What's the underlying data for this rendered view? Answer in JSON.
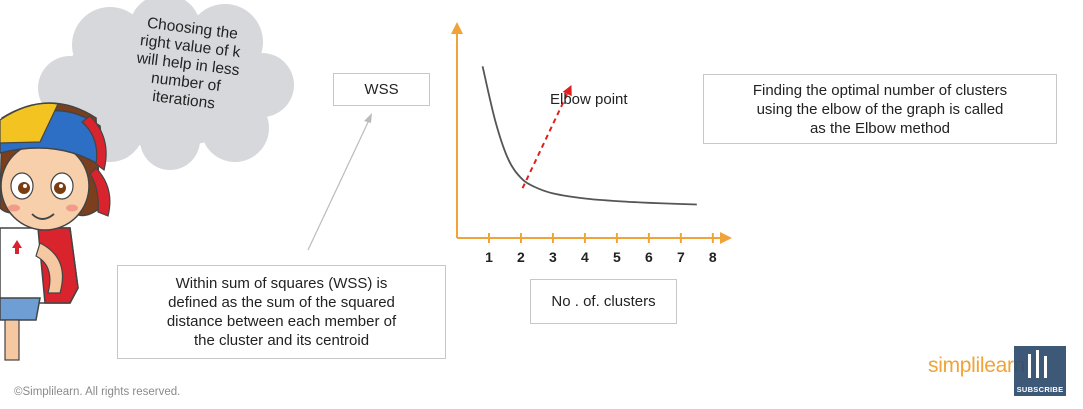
{
  "cloud": {
    "text_lines": [
      "Choosing the",
      "right value of k",
      "will help in less",
      "number of",
      "iterations"
    ]
  },
  "wss_label": "WSS",
  "wss_definition_lines": [
    "Within sum of squares (WSS) is",
    "defined as the sum of the squared",
    "distance between each member of",
    "the cluster and its centroid"
  ],
  "x_axis_label": "No . of. clusters",
  "elbow_label": "Elbow point",
  "method_lines": [
    "Finding the optimal number of clusters",
    "using the elbow of the graph is called",
    "as the Elbow method"
  ],
  "footer": "©Simplilearn. All rights reserved.",
  "brand": {
    "name": "simplilearn",
    "subscribe": "SUBSCRIBE"
  },
  "colors": {
    "axis": "#f0a338",
    "curve": "#555555",
    "elbow_arrow": "#e02020",
    "pointer": "#bbbbbb"
  },
  "chart_data": {
    "type": "line",
    "x_ticks": [
      1,
      2,
      3,
      4,
      5,
      6,
      7,
      8
    ],
    "x": [
      0.8,
      1.2,
      1.6,
      2.0,
      2.4,
      3,
      4,
      5,
      6,
      7,
      7.5
    ],
    "y": [
      10,
      6.8,
      4.6,
      3.5,
      3.0,
      2.6,
      2.3,
      2.15,
      2.05,
      1.98,
      1.95
    ],
    "xlabel": "No . of. clusters",
    "ylabel": "WSS",
    "xlim": [
      0,
      8.6
    ],
    "ylim": [
      0,
      12
    ],
    "annotation": "Elbow point"
  }
}
